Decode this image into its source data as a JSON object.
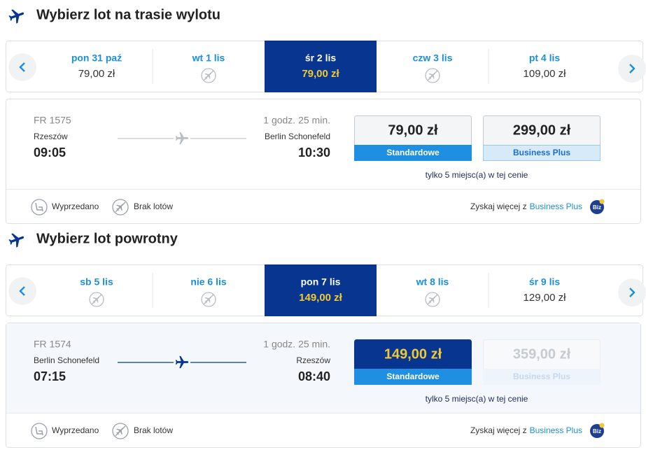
{
  "outbound": {
    "title": "Wybierz lot na trasie wylotu",
    "selected_date": 2,
    "dates": [
      {
        "day": "pon 31 paź",
        "price": "79,00 zł"
      },
      {
        "day": "wt 1 lis"
      },
      {
        "day": "śr 2 lis",
        "price": "79,00 zł"
      },
      {
        "day": "czw 3 lis"
      },
      {
        "day": "pt 4 lis",
        "price": "109,00 zł"
      }
    ],
    "flight": {
      "number": "FR 1575",
      "duration": "1 godz. 25 min.",
      "from": "Rzeszów",
      "depart": "09:05",
      "to": "Berlin Schonefeld",
      "arrive": "10:30",
      "fares": [
        {
          "price": "79,00 zł",
          "name": "Standardowe"
        },
        {
          "price": "299,00 zł",
          "name": "Business Plus"
        }
      ],
      "note": "tylko 5 miejsc(a) w tej cenie"
    },
    "legend": [
      "Wyprzedano",
      "Brak lotów"
    ],
    "promo": {
      "text": "Zyskaj więcej z",
      "link": "Business Plus",
      "badge": "Biz"
    }
  },
  "return": {
    "title": "Wybierz lot powrotny",
    "selected_date": 2,
    "dates": [
      {
        "day": "sb 5 lis"
      },
      {
        "day": "nie 6 lis"
      },
      {
        "day": "pon 7 lis",
        "price": "149,00 zł"
      },
      {
        "day": "wt 8 lis"
      },
      {
        "day": "śr 9 lis",
        "price": "129,00 zł"
      }
    ],
    "flight": {
      "number": "FR 1574",
      "duration": "1 godz. 25 min.",
      "from": "Berlin Schonefeld",
      "depart": "07:15",
      "to": "Rzeszów",
      "arrive": "08:40",
      "fares": [
        {
          "price": "149,00 zł",
          "name": "Standardowe"
        },
        {
          "price": "359,00 zł",
          "name": "Business Plus"
        }
      ],
      "selected_fare": 0,
      "unavailable_fare": 1,
      "note": "tylko 5 miejsc(a) w tej cenie"
    },
    "legend": [
      "Wyprzedano",
      "Brak lotów"
    ],
    "promo": {
      "text": "Zyskaj więcej z",
      "link": "Business Plus",
      "badge": "Biz"
    }
  }
}
